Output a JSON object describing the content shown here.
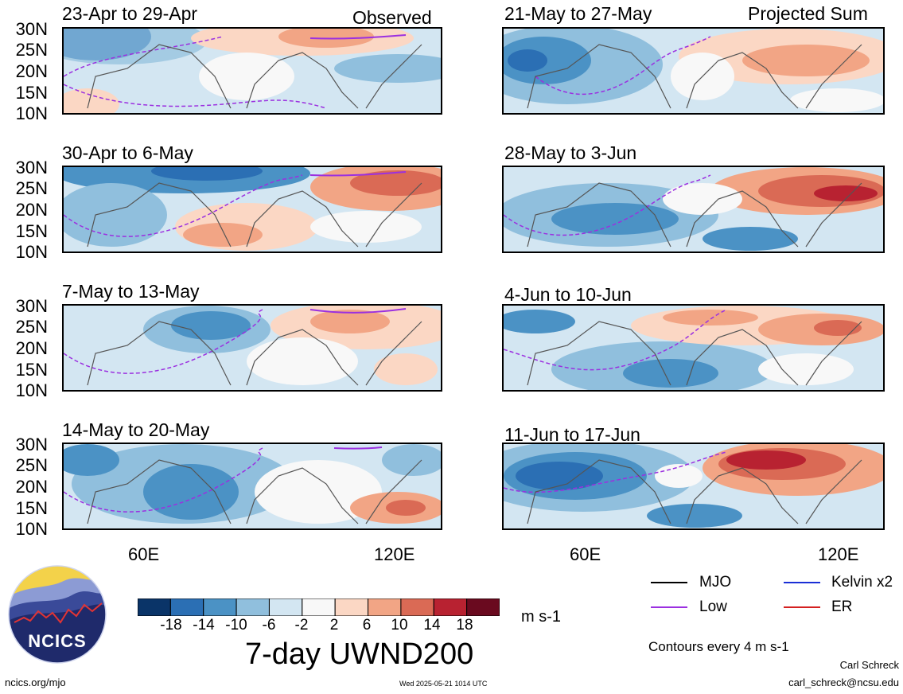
{
  "corner_labels": {
    "left": "Observed",
    "right": "Projected Sum"
  },
  "panels": [
    {
      "title": "23-Apr to 29-Apr",
      "col": 0,
      "row": 0
    },
    {
      "title": "30-Apr to 6-May",
      "col": 0,
      "row": 1
    },
    {
      "title": "7-May to 13-May",
      "col": 0,
      "row": 2
    },
    {
      "title": "14-May to 20-May",
      "col": 0,
      "row": 3
    },
    {
      "title": "21-May to 27-May",
      "col": 1,
      "row": 0
    },
    {
      "title": "28-May to 3-Jun",
      "col": 1,
      "row": 1
    },
    {
      "title": "4-Jun to 10-Jun",
      "col": 1,
      "row": 2
    },
    {
      "title": "11-Jun to 17-Jun",
      "col": 1,
      "row": 3
    }
  ],
  "lat_labels": [
    "30N",
    "25N",
    "20N",
    "15N",
    "10N"
  ],
  "lon_labels": [
    "60E",
    "120E"
  ],
  "colorbar": {
    "colors": [
      "#0a3468",
      "#2b6fb4",
      "#4b92c5",
      "#90bfdd",
      "#d3e6f2",
      "#f8f8f8",
      "#fbd7c4",
      "#f2a585",
      "#da6a55",
      "#b82231",
      "#6a0a1f"
    ],
    "ticks": [
      "-18",
      "-14",
      "-10",
      "-6",
      "-2",
      "2",
      "6",
      "10",
      "14",
      "18"
    ],
    "units": "m s-1"
  },
  "title": "7-day UWND200",
  "legend": [
    {
      "label": "MJO",
      "color": "#000000"
    },
    {
      "label": "Kelvin x2",
      "color": "#1a2fd6"
    },
    {
      "label": "Low",
      "color": "#9b30e0"
    },
    {
      "label": "ER",
      "color": "#d42020"
    }
  ],
  "contour_note": "Contours every 4 m s-1",
  "logo_text": "NCICS",
  "footer": {
    "url": "ncics.org/mjo",
    "timestamp": "Wed 2025-05-21 1014 UTC",
    "author": "Carl Schreck",
    "email": "carl_schreck@ncsu.edu"
  }
}
